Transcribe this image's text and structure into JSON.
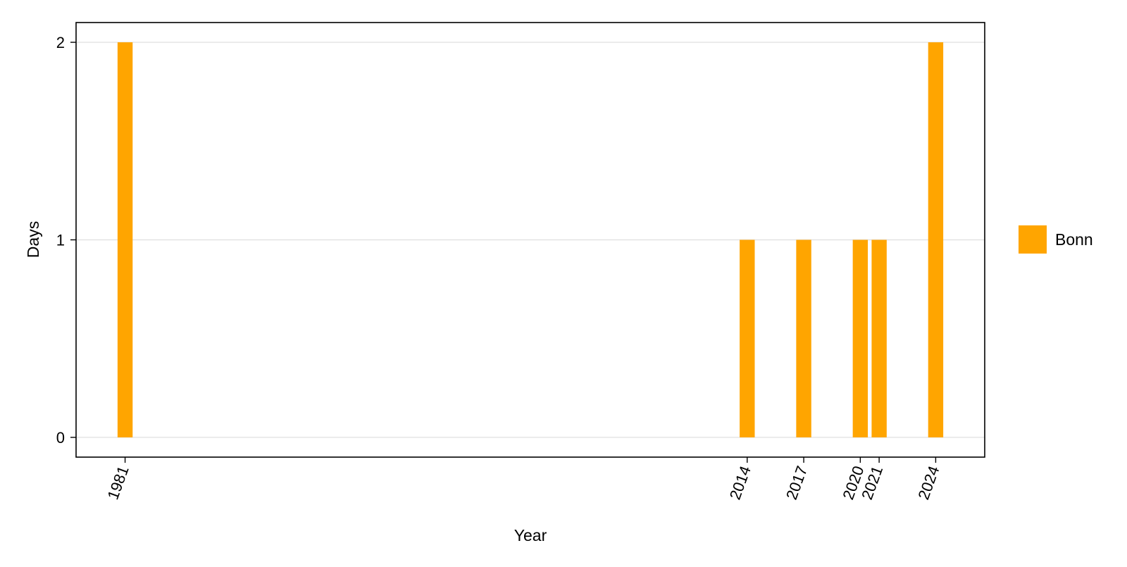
{
  "chart_data": {
    "type": "bar",
    "title": "",
    "xlabel": "Year",
    "ylabel": "Days",
    "x_ticks": [
      1981,
      2014,
      2017,
      2020,
      2021,
      2024
    ],
    "y_ticks": [
      0,
      1,
      2
    ],
    "xlim": [
      1978.4,
      2026.6
    ],
    "ylim": [
      -0.1,
      2.1
    ],
    "grid": "horizontal",
    "legend_position": "right",
    "series": [
      {
        "name": "Bonn",
        "color": "#FFA500",
        "x": [
          1981,
          2014,
          2017,
          2020,
          2021,
          2024
        ],
        "values": [
          2,
          1,
          1,
          1,
          1,
          2
        ]
      }
    ]
  }
}
